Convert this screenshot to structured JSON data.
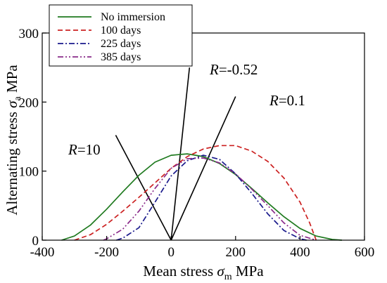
{
  "chart_data": {
    "type": "line",
    "title": "",
    "xlabel": "Mean stress σm MPa",
    "ylabel": "Alternating stress σa MPa",
    "xlabel_parts": {
      "prefix": "Mean stress ",
      "symbol": "σ",
      "sub": "m",
      "suffix": " MPa"
    },
    "ylabel_parts": {
      "prefix": "Alternating stress ",
      "symbol": "σ",
      "sub": "a",
      "suffix": " MPa"
    },
    "xlim": [
      -400,
      600
    ],
    "ylim": [
      0,
      300
    ],
    "xticks": [
      -400,
      -200,
      0,
      200,
      400,
      600
    ],
    "yticks": [
      0,
      100,
      200,
      300
    ],
    "grid": false,
    "legend": {
      "position": "top-left"
    },
    "series": [
      {
        "name": "No immersion",
        "color": "#1f7a1f",
        "dash": "solid",
        "x": [
          -340,
          -300,
          -250,
          -200,
          -150,
          -100,
          -50,
          0,
          50,
          100,
          150,
          200,
          250,
          300,
          350,
          400,
          450,
          500,
          530
        ],
        "y": [
          0,
          6,
          22,
          45,
          70,
          94,
          113,
          123,
          125,
          121,
          111,
          95,
          75,
          54,
          34,
          17,
          6,
          1,
          0
        ]
      },
      {
        "name": "100 days",
        "color": "#cc2222",
        "dash": "dashed",
        "x": [
          -300,
          -250,
          -200,
          -150,
          -100,
          -50,
          0,
          50,
          100,
          150,
          200,
          250,
          300,
          350,
          400,
          430,
          450
        ],
        "y": [
          0,
          8,
          23,
          42,
          62,
          83,
          104,
          121,
          132,
          137,
          137,
          129,
          114,
          90,
          55,
          25,
          0
        ]
      },
      {
        "name": "225 days",
        "color": "#1a1a8c",
        "dash": "dashdot",
        "x": [
          -170,
          -150,
          -100,
          -50,
          0,
          50,
          100,
          150,
          200,
          250,
          300,
          350,
          400,
          420
        ],
        "y": [
          0,
          3,
          18,
          55,
          93,
          115,
          123,
          117,
          96,
          68,
          38,
          14,
          2,
          0
        ]
      },
      {
        "name": "385 days",
        "color": "#8a2b8a",
        "dash": "dashdotdot",
        "x": [
          -210,
          -200,
          -150,
          -100,
          -50,
          0,
          50,
          100,
          150,
          200,
          250,
          300,
          350,
          400,
          450
        ],
        "y": [
          0,
          2,
          16,
          42,
          75,
          104,
          118,
          119,
          112,
          96,
          74,
          50,
          25,
          7,
          0
        ]
      }
    ],
    "ratio_lines": [
      {
        "label_italic": "R",
        "label_rest": "=10",
        "x2": -172,
        "y2": 152
      },
      {
        "label_italic": "R",
        "label_rest": "=-0.52",
        "x2": 57,
        "y2": 250
      },
      {
        "label_italic": "R",
        "label_rest": "=0.1",
        "x2": 200,
        "y2": 208
      }
    ]
  }
}
